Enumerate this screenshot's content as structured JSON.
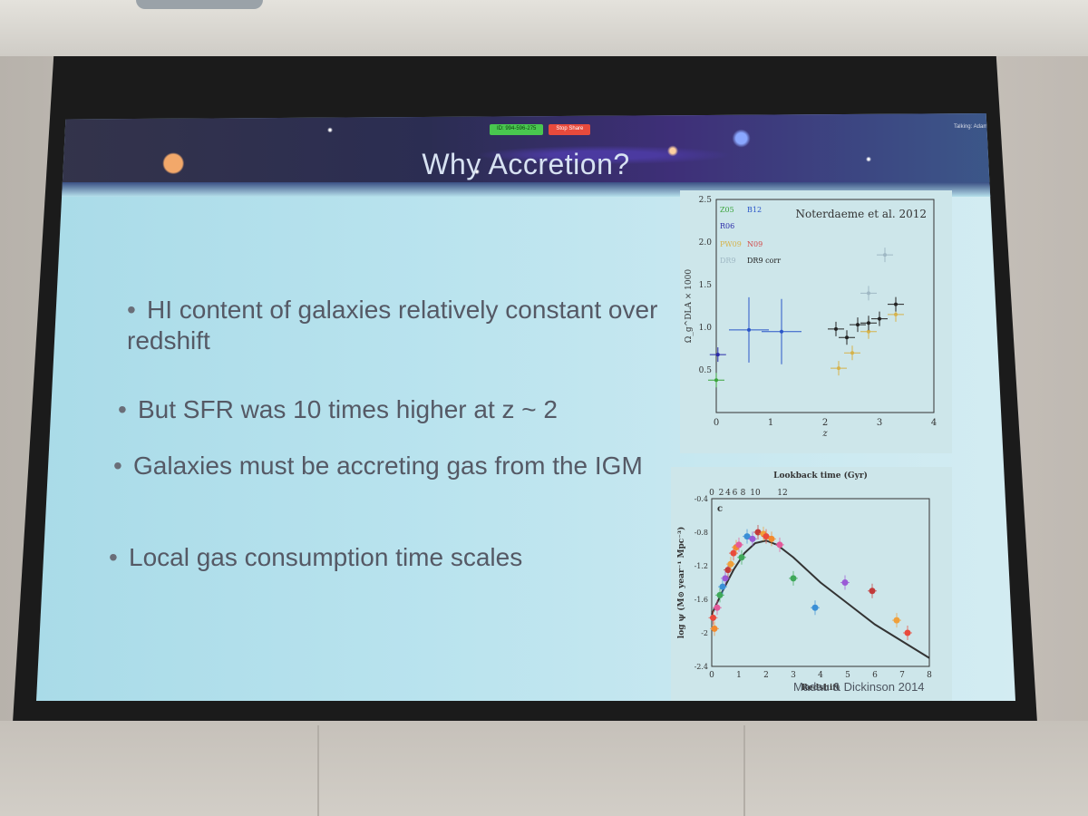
{
  "slide": {
    "title": "Why Accretion?",
    "zoom_id": "ID: 994-596-275",
    "zoom_stop": "Stop Share",
    "talking": "Talking: Adam Ste",
    "bullets": [
      "HI content of galaxies relatively constant over redshift",
      "But SFR was 10 times higher at z ~ 2",
      "Galaxies must be accreting gas from the IGM",
      "Local gas consumption time scales"
    ],
    "figure_credit_top": "Noterdaeme et al. 2012",
    "figure_credit_bottom": "Madau & Dickinson 2014"
  },
  "chart_data": [
    {
      "type": "scatter",
      "title": "Noterdaeme et al. 2012",
      "xlabel": "z",
      "ylabel": "Ω_g^DLA × 1000",
      "xlim": [
        0,
        4
      ],
      "ylim": [
        0,
        2.5
      ],
      "x_ticks": [
        "0",
        "1",
        "2",
        "3",
        "4"
      ],
      "y_ticks": [
        "0.5",
        "1.0",
        "1.5",
        "2.0",
        "2.5"
      ],
      "legend": [
        "Z05",
        "B12",
        "R06",
        "PW09",
        "N09",
        "DR9",
        "DR9 corr"
      ],
      "series": [
        {
          "name": "Z05",
          "color": "#3aa43a",
          "x": [
            0
          ],
          "y": [
            0.38
          ]
        },
        {
          "name": "B12",
          "color": "#2a55c8",
          "x": [
            0.6,
            1.2
          ],
          "y": [
            0.97,
            0.95
          ]
        },
        {
          "name": "R06",
          "color": "#2a2aa8",
          "x": [
            0.03
          ],
          "y": [
            0.68
          ]
        },
        {
          "name": "PW09",
          "color": "#d6b24a",
          "x": [
            2.25,
            2.5,
            2.8,
            3.3
          ],
          "y": [
            0.52,
            0.7,
            0.95,
            1.15
          ]
        },
        {
          "name": "DR9",
          "color": "#9fb8c4",
          "x": [
            2.8,
            3.1
          ],
          "y": [
            1.4,
            1.85
          ]
        },
        {
          "name": "DR9 corr",
          "color": "#222222",
          "x": [
            2.2,
            2.4,
            2.6,
            2.8,
            3.0,
            3.3
          ],
          "y": [
            0.98,
            0.88,
            1.03,
            1.05,
            1.1,
            1.27
          ]
        }
      ]
    },
    {
      "type": "scatter",
      "title": "",
      "panel_label": "c",
      "xlabel": "Redshift",
      "x2label": "Lookback time (Gyr)",
      "ylabel": "log ψ (M⊙ year⁻¹ Mpc⁻³)",
      "xlim": [
        0,
        8
      ],
      "ylim": [
        -2.4,
        -0.4
      ],
      "x_ticks": [
        "0",
        "1",
        "2",
        "3",
        "4",
        "5",
        "6",
        "7",
        "8"
      ],
      "x2_ticks": [
        "0",
        "2",
        "4",
        "6",
        "8",
        "10",
        "12"
      ],
      "y_ticks": [
        "-0.4",
        "-0.8",
        "-1.2",
        "-1.6",
        "-2",
        "-2.4"
      ],
      "curve": {
        "x": [
          0,
          0.4,
          0.8,
          1.2,
          1.6,
          2.0,
          2.4,
          3,
          4,
          5,
          6,
          7,
          8
        ],
        "y": [
          -1.78,
          -1.5,
          -1.25,
          -1.05,
          -0.93,
          -0.9,
          -0.95,
          -1.1,
          -1.4,
          -1.65,
          -1.9,
          -2.1,
          -2.3
        ]
      },
      "series": [
        {
          "name": "points",
          "x": [
            0.05,
            0.1,
            0.2,
            0.3,
            0.4,
            0.5,
            0.6,
            0.7,
            0.8,
            0.9,
            1.0,
            1.1,
            1.3,
            1.5,
            1.7,
            1.9,
            2.0,
            2.2,
            2.5,
            3.0,
            3.8,
            4.9,
            5.9,
            6.8,
            7.2
          ],
          "y": [
            -1.82,
            -1.95,
            -1.7,
            -1.55,
            -1.45,
            -1.35,
            -1.25,
            -1.18,
            -1.05,
            -0.98,
            -0.95,
            -1.1,
            -0.85,
            -0.88,
            -0.8,
            -0.82,
            -0.85,
            -0.88,
            -0.95,
            -1.35,
            -1.7,
            -1.4,
            -1.5,
            -1.85,
            -2.0
          ]
        }
      ]
    }
  ]
}
